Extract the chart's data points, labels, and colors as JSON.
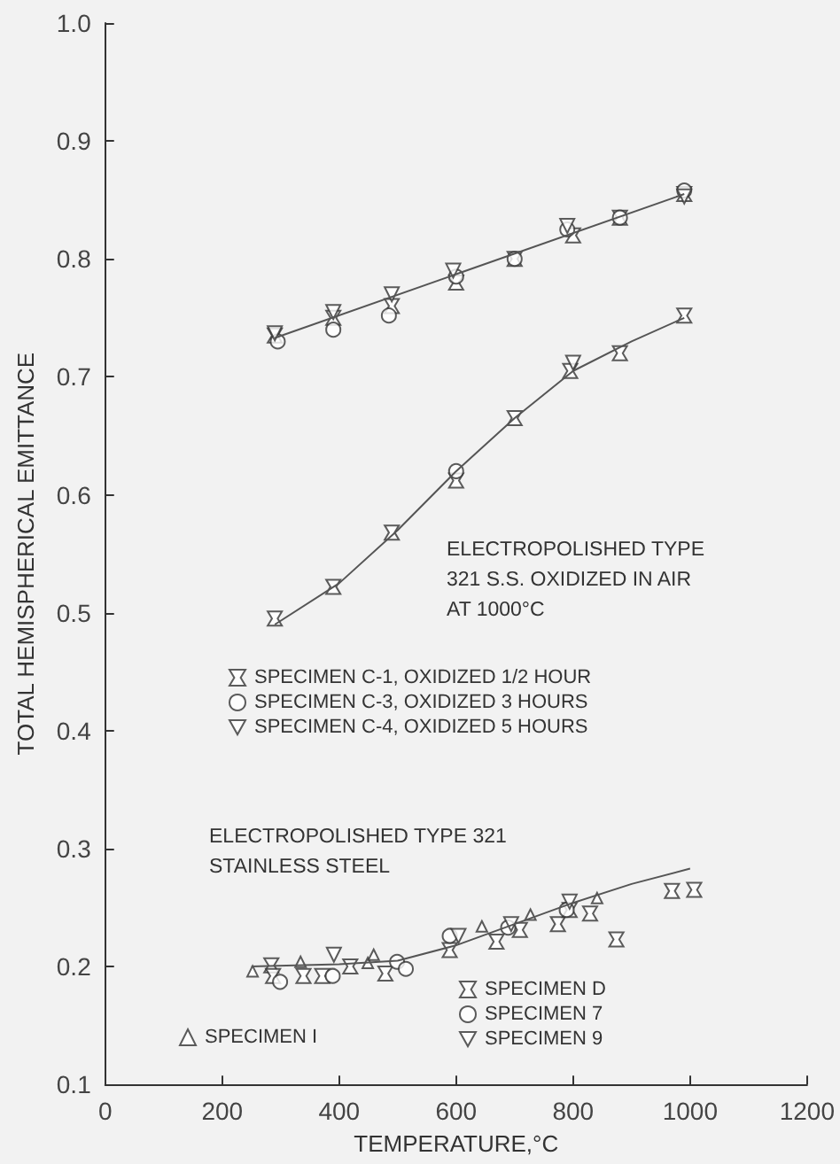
{
  "chart_data": {
    "type": "scatter",
    "xlabel": "TEMPERATURE,°C",
    "ylabel": "TOTAL HEMISPHERICAL EMITTANCE",
    "xlim": [
      0,
      1200
    ],
    "xticks": [
      0,
      200,
      400,
      600,
      800,
      1000,
      1200
    ],
    "ylim": [
      0.1,
      1.0
    ],
    "yticks": [
      0.1,
      0.2,
      0.3,
      0.4,
      0.5,
      0.6,
      0.7,
      0.8,
      0.9,
      {
        "value": 1.0,
        "label": "1.0"
      }
    ],
    "grid": false,
    "legend": "bottom",
    "tick_labels": true,
    "annotations": [
      "ELECTROPOLISHED TYPE\n321 S.S. OXIDIZED IN AIR\nAT 1000°C",
      "ELECTROPOLISHED TYPE 321\nSTAINLESS STEEL"
    ],
    "series": [
      {
        "name": "SPECIMEN C-1, OXIDIZED 1/2 HOUR",
        "color": "#333333",
        "marker": "cross",
        "x": [
          290,
          390,
          490,
          600,
          700,
          800,
          880,
          990,
          290,
          390,
          490,
          600,
          700,
          795,
          880,
          990
        ],
        "values": [
          0.735,
          0.75,
          0.76,
          0.78,
          0.8,
          0.82,
          0.835,
          0.855,
          0.495,
          0.522,
          0.568,
          0.612,
          0.665,
          0.705,
          0.72,
          0.752
        ]
      },
      {
        "name": "SPECIMEN C-3, OXIDIZED 3 HOURS",
        "color": "#333333",
        "marker": "circle",
        "x": [
          295,
          390,
          485,
          600,
          700,
          790,
          880,
          990,
          600
        ],
        "values": [
          0.73,
          0.74,
          0.752,
          0.785,
          0.8,
          0.825,
          0.835,
          0.858,
          0.62
        ]
      },
      {
        "name": "SPECIMEN C-4, OXIDIZED 5 HOURS",
        "color": "#333333",
        "marker": "triangle-down",
        "x": [
          290,
          390,
          490,
          595,
          790,
          990,
          800
        ],
        "values": [
          0.737,
          0.755,
          0.77,
          0.79,
          0.828,
          0.853,
          0.712
        ]
      },
      {
        "name": "SPECIMEN D",
        "color": "#333333",
        "marker": "cross",
        "x": [
          284,
          287,
          339,
          371,
          419,
          479,
          589,
          669,
          709,
          774,
          794,
          829,
          874,
          969,
          1007
        ],
        "values": [
          0.201,
          0.192,
          0.192,
          0.192,
          0.2,
          0.194,
          0.214,
          0.221,
          0.231,
          0.236,
          0.248,
          0.245,
          0.223,
          0.264,
          0.265
        ]
      },
      {
        "name": "SPECIMEN 7",
        "color": "#333333",
        "marker": "circle",
        "x": [
          299,
          389,
          499,
          514,
          589,
          689,
          789
        ],
        "values": [
          0.187,
          0.192,
          0.204,
          0.198,
          0.226,
          0.233,
          0.248
        ]
      },
      {
        "name": "SPECIMEN 9",
        "color": "#333333",
        "marker": "triangle-down",
        "x": [
          391,
          604,
          694,
          794
        ],
        "values": [
          0.21,
          0.226,
          0.236,
          0.255
        ]
      },
      {
        "name": "SPECIMEN I",
        "color": "#333333",
        "marker": "triangle",
        "x": [
          252,
          334,
          449,
          459,
          644,
          727,
          841
        ],
        "values": [
          0.196,
          0.204,
          0.203,
          0.21,
          0.234,
          0.244,
          0.258
        ]
      },
      {
        "type": "line",
        "color": "#555555",
        "marker": "none",
        "x": [
          290,
          990
        ],
        "values": [
          0.733,
          0.855
        ]
      },
      {
        "type": "line",
        "color": "#555555",
        "marker": "none",
        "x": [
          290,
          400,
          500,
          600,
          700,
          800,
          900,
          990
        ],
        "values": [
          0.49,
          0.525,
          0.57,
          0.62,
          0.665,
          0.705,
          0.73,
          0.75
        ]
      },
      {
        "type": "line",
        "color": "#555555",
        "marker": "none",
        "x": [
          250,
          400,
          500,
          600,
          700,
          800,
          900,
          1000
        ],
        "values": [
          0.2,
          0.202,
          0.205,
          0.218,
          0.236,
          0.254,
          0.27,
          0.283
        ]
      }
    ]
  }
}
